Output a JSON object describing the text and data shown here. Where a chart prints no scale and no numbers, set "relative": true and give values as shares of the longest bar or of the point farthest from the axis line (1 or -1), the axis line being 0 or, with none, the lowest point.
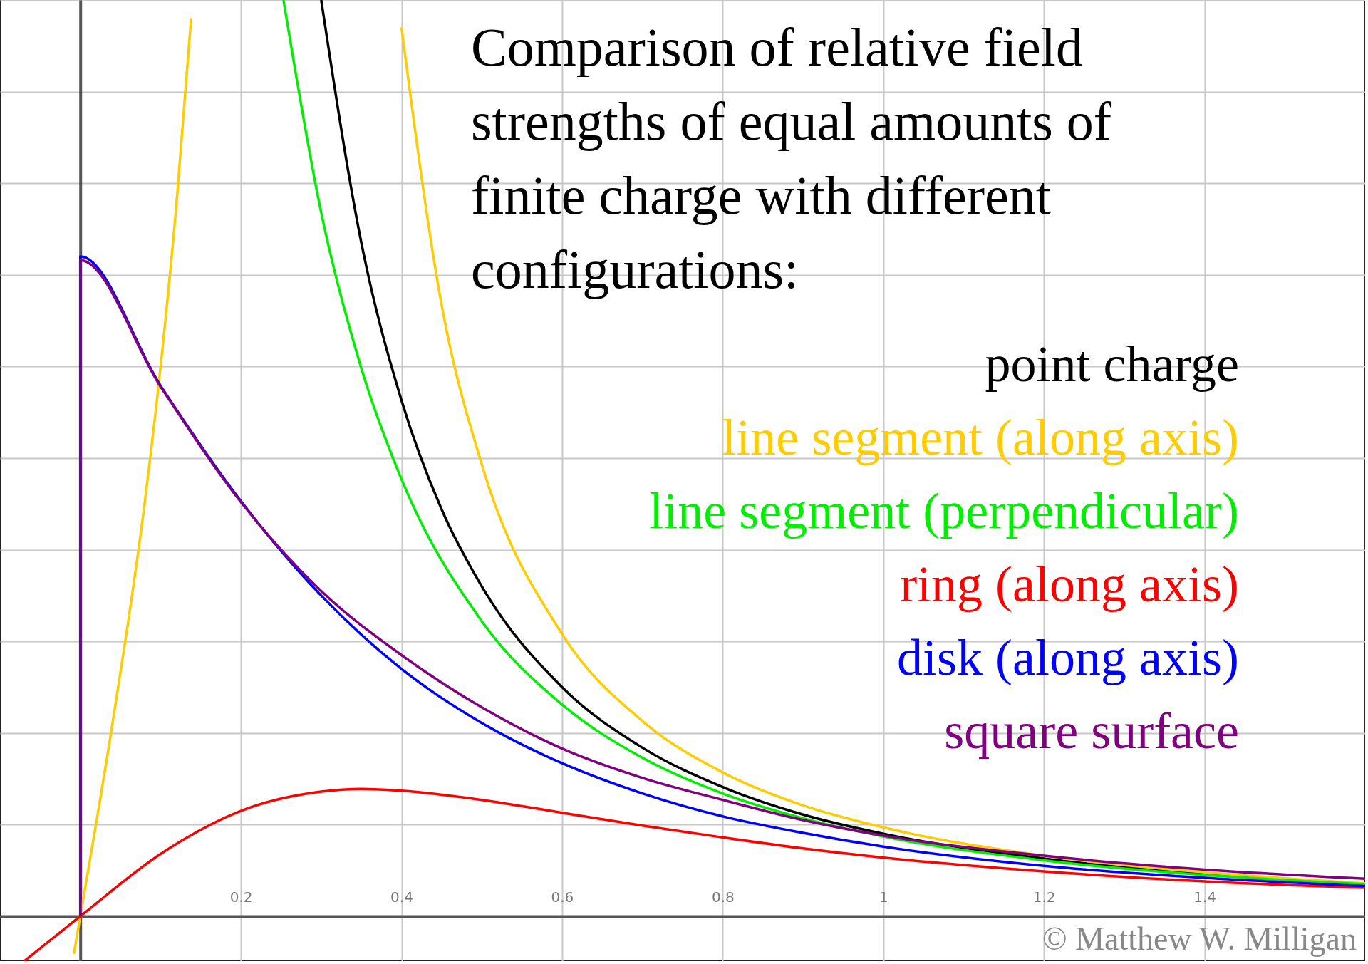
{
  "chart_data": {
    "type": "line",
    "title": "Comparison of relative field strengths of equal amounts of finite charge with different configurations:",
    "relative": true,
    "xlim": [
      -0.1,
      1.6
    ],
    "xticks": [
      0.2,
      0.4,
      0.6,
      0.8,
      1,
      1.2,
      1.4
    ],
    "grid": true,
    "annotations": [
      "© Matthew W. Milligan"
    ],
    "series": [
      {
        "name": "point charge",
        "color": "#000000",
        "x": [
          0.3,
          0.35,
          0.4,
          0.45,
          0.5,
          0.6,
          0.7,
          0.8,
          0.9,
          1.0,
          1.2,
          1.4,
          1.6
        ],
        "values": [
          1.0,
          0.735,
          0.563,
          0.444,
          0.36,
          0.25,
          0.184,
          0.141,
          0.111,
          0.09,
          0.063,
          0.046,
          0.035
        ]
      },
      {
        "name": "line segment (along axis)",
        "color": "#ffcc00",
        "x": [
          -0.008,
          0,
          0.04,
          0.08,
          0.1,
          0.12,
          0.138,
          0.27,
          0.4,
          0.45,
          0.5,
          0.6,
          0.7,
          0.8,
          0.9,
          1.0,
          1.2,
          1.4,
          1.6
        ],
        "values": [
          -0.041,
          0,
          0.21,
          0.45,
          0.6,
          0.78,
          0.98,
          null,
          0.97,
          0.667,
          0.493,
          0.308,
          0.213,
          0.157,
          0.121,
          0.097,
          0.066,
          0.048,
          0.036
        ]
      },
      {
        "name": "line segment (perpendicular)",
        "color": "#00ee00",
        "x": [
          0.253,
          0.3,
          0.35,
          0.4,
          0.5,
          0.6,
          0.7,
          0.8,
          0.9,
          1.0,
          1.2,
          1.4,
          1.6
        ],
        "values": [
          1.0,
          0.768,
          0.598,
          0.477,
          0.322,
          0.231,
          0.173,
          0.134,
          0.107,
          0.087,
          0.061,
          0.045,
          0.035
        ]
      },
      {
        "name": "ring (along axis)",
        "color": "#ff0000",
        "x": [
          -0.07,
          0,
          0.1,
          0.2,
          0.3,
          0.35,
          0.4,
          0.5,
          0.6,
          0.7,
          0.8,
          0.9,
          1.0,
          1.2,
          1.4,
          1.6
        ],
        "values": [
          -0.049,
          0,
          0.068,
          0.115,
          0.136,
          0.139,
          0.137,
          0.127,
          0.113,
          0.099,
          0.086,
          0.074,
          0.064,
          0.049,
          0.038,
          0.031
        ]
      },
      {
        "name": "disk (along axis)",
        "color": "#0000ff",
        "x": [
          0,
          0,
          0.1,
          0.2,
          0.3,
          0.4,
          0.5,
          0.6,
          0.7,
          0.8,
          0.9,
          1.0,
          1.2,
          1.4,
          1.6
        ],
        "values": [
          0,
          0.72,
          0.579,
          0.453,
          0.35,
          0.27,
          0.211,
          0.167,
          0.134,
          0.109,
          0.091,
          0.076,
          0.055,
          0.042,
          0.033
        ]
      },
      {
        "name": "square surface",
        "color": "#800080",
        "x": [
          0,
          0,
          0.1,
          0.2,
          0.3,
          0.4,
          0.5,
          0.6,
          0.7,
          0.8,
          0.9,
          1.0,
          1.2,
          1.4,
          1.6
        ],
        "values": [
          0,
          0.716,
          0.578,
          0.452,
          0.355,
          0.285,
          0.228,
          0.183,
          0.151,
          0.127,
          0.105,
          0.088,
          0.066,
          0.051,
          0.041
        ]
      }
    ]
  }
}
